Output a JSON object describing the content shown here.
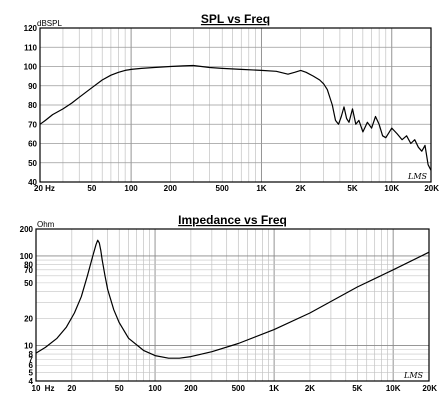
{
  "chart_data": [
    {
      "type": "line",
      "title": "SPL vs Freq",
      "ylabel": "dBSPL",
      "xscale": "log",
      "xlim": [
        20,
        20000
      ],
      "ylim": [
        40,
        120
      ],
      "grid": true,
      "watermark": "LMS",
      "x_tick_labels": [
        "20 Hz",
        "50",
        "100",
        "200",
        "500",
        "1K",
        "2K",
        "5K",
        "10K",
        "20K"
      ],
      "x_tick_values": [
        20,
        50,
        100,
        200,
        500,
        1000,
        2000,
        5000,
        10000,
        20000
      ],
      "y_tick_labels": [
        "40",
        "50",
        "60",
        "70",
        "80",
        "90",
        "100",
        "110",
        "120"
      ],
      "y_tick_values": [
        40,
        50,
        60,
        70,
        80,
        90,
        100,
        110,
        120
      ],
      "x": [
        20,
        22,
        25,
        30,
        35,
        40,
        50,
        60,
        70,
        80,
        90,
        100,
        120,
        150,
        200,
        250,
        300,
        400,
        500,
        700,
        1000,
        1300,
        1600,
        1800,
        2000,
        2200,
        2500,
        2800,
        3000,
        3200,
        3500,
        3700,
        3900,
        4100,
        4300,
        4500,
        4700,
        5000,
        5300,
        5600,
        6000,
        6500,
        7000,
        7500,
        8000,
        8500,
        9000,
        10000,
        11000,
        12000,
        13000,
        14000,
        15000,
        16000,
        17000,
        18000,
        19000,
        20000
      ],
      "y": [
        70,
        72,
        75,
        78,
        81,
        84,
        89,
        93,
        95.5,
        97,
        98,
        98.5,
        99,
        99.5,
        100,
        100.3,
        100.5,
        99.5,
        99,
        98.5,
        98,
        97.5,
        96,
        97,
        98,
        97,
        95,
        93,
        91,
        88,
        80,
        72,
        70,
        74,
        79,
        73,
        71,
        78,
        70,
        72,
        66,
        71,
        68,
        74,
        70,
        64,
        63,
        68,
        65,
        62,
        64,
        60,
        62,
        58,
        56,
        59,
        49,
        46
      ]
    },
    {
      "type": "line",
      "title": "Impedance vs Freq",
      "ylabel": "Ohm",
      "xscale": "log",
      "yscale": "log",
      "xlim": [
        10,
        20000
      ],
      "ylim": [
        4,
        200
      ],
      "grid": true,
      "watermark": "LMS",
      "x_tick_labels": [
        "10",
        "Hz",
        "20",
        "50",
        "100",
        "200",
        "500",
        "1K",
        "2K",
        "5K",
        "10K",
        "20K"
      ],
      "x_tick_values": [
        10,
        13,
        20,
        50,
        100,
        200,
        500,
        1000,
        2000,
        5000,
        10000,
        20000
      ],
      "y_tick_labels": [
        "4",
        "5",
        "6",
        "7",
        "8",
        "10",
        "20",
        "50",
        "70",
        "80",
        "100",
        "200"
      ],
      "y_tick_values": [
        4,
        5,
        6,
        7,
        8,
        10,
        20,
        50,
        70,
        80,
        100,
        200
      ],
      "x": [
        10,
        12,
        15,
        18,
        21,
        24,
        27,
        30,
        32,
        33,
        34,
        35,
        36,
        38,
        40,
        45,
        50,
        60,
        80,
        100,
        130,
        160,
        200,
        300,
        500,
        1000,
        2000,
        5000,
        10000,
        20000
      ],
      "y": [
        8.2,
        9.5,
        12,
        16,
        23,
        35,
        60,
        100,
        135,
        150,
        140,
        115,
        90,
        60,
        42,
        25,
        18,
        12,
        8.8,
        7.7,
        7.2,
        7.2,
        7.5,
        8.5,
        10.5,
        15,
        23,
        45,
        70,
        110
      ]
    }
  ]
}
